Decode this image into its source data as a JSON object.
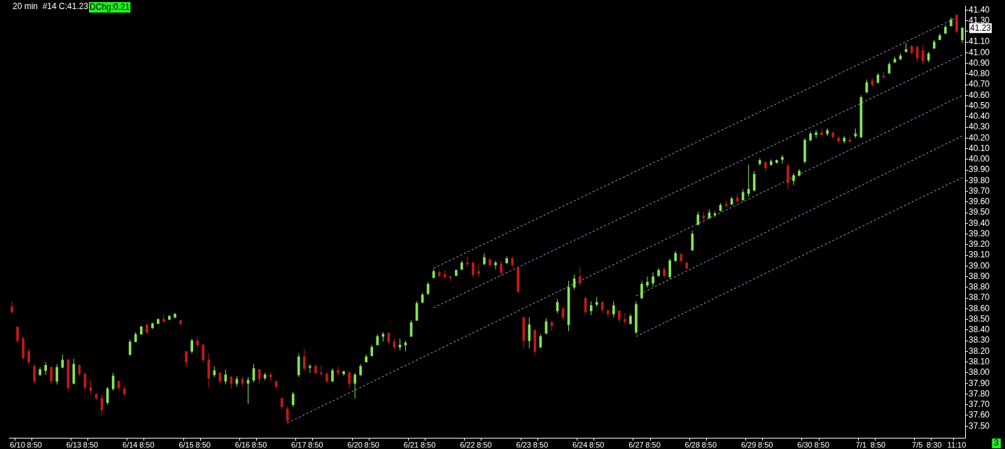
{
  "chart_data": {
    "type": "candlestick",
    "title": "20 min  #14 C:41.23",
    "annotations": [
      "DChg:0.21",
      "41.23",
      "3"
    ],
    "categories": [
      null,
      "6/10",
      null,
      null,
      "8:50",
      null,
      null,
      null,
      null,
      null,
      null,
      "6/13",
      null,
      null,
      "8:50",
      null,
      null,
      null,
      null,
      null,
      null,
      "6/14",
      null,
      null,
      "8:50",
      null,
      null,
      null,
      null,
      null,
      null,
      "6/15",
      null,
      null,
      "8:50",
      null,
      null,
      null,
      null,
      null,
      null,
      "6/16",
      null,
      null,
      "8:50",
      null,
      null,
      null,
      null,
      null,
      null,
      "6/17",
      null,
      null,
      "8:50",
      null,
      null,
      null,
      null,
      null,
      null,
      "6/20",
      null,
      null,
      "8:50",
      null,
      null,
      null,
      null,
      null,
      null,
      "6/21",
      null,
      null,
      "8:50",
      null,
      null,
      null,
      null,
      null,
      null,
      "6/22",
      null,
      null,
      "8:50",
      null,
      null,
      null,
      null,
      null,
      null,
      "6/23",
      null,
      null,
      "8:50",
      null,
      null,
      null,
      null,
      null,
      null,
      "6/24",
      null,
      null,
      "8:50",
      null,
      null,
      null,
      null,
      null,
      null,
      "6/27",
      null,
      null,
      "8:50",
      null,
      null,
      null,
      null,
      null,
      null,
      "6/28",
      null,
      null,
      "8:50",
      null,
      null,
      null,
      null,
      null,
      null,
      "6/29",
      null,
      null,
      "8:50",
      null,
      null,
      null,
      null,
      null,
      null,
      "6/30",
      null,
      null,
      "8:50",
      null,
      null,
      null,
      null,
      null,
      null,
      "7/1",
      null,
      null,
      "8:50",
      null,
      null,
      null,
      null,
      null,
      null,
      "7/5",
      null,
      null,
      "8:30",
      null,
      null,
      null,
      "11:10",
      null
    ],
    "series": [
      {
        "colors": [
          "#c41a1a",
          "#c41a1a",
          "#c41a1a",
          "#c41a1a",
          "#c41a1a",
          "#86e45c",
          "#86e45c",
          "#c41a1a",
          "#86e45c",
          "#86e45c",
          "#c41a1a",
          "#86e45c",
          "#c41a1a",
          "#c41a1a",
          "#c41a1a",
          "#c41a1a",
          "#c41a1a",
          "#86e45c",
          "#86e45c",
          "#c41a1a",
          "#c41a1a",
          "#86e45c",
          "#86e45c",
          "#86e45c",
          "#c41a1a",
          "#86e45c",
          "#86e45c",
          "#c41a1a",
          "#86e45c",
          "#86e45c",
          "#c41a1a",
          "#c41a1a",
          "#86e45c",
          "#c41a1a",
          "#c41a1a",
          "#c41a1a",
          "#86e45c",
          "#c41a1a",
          "#86e45c",
          "#c41a1a",
          "#86e45c",
          "#c41a1a",
          "#86e45c",
          "#86e45c",
          "#c41a1a",
          "#86e45c",
          "#c41a1a",
          "#c41a1a",
          "#c41a1a",
          "#c41a1a",
          "#86e45c",
          "#86e45c",
          "#c41a1a",
          "#86e45c",
          "#c41a1a",
          "#c41a1a",
          "#c41a1a",
          "#86e45c",
          "#c41a1a",
          "#86e45c",
          "#c41a1a",
          "#86e45c",
          "#86e45c",
          "#86e45c",
          "#86e45c",
          "#86e45c",
          "#86e45c",
          "#c41a1a",
          "#c41a1a",
          "#86e45c",
          "#86e45c",
          "#86e45c",
          "#86e45c",
          "#86e45c",
          "#86e45c",
          "#86e45c",
          "#c41a1a",
          "#c41a1a",
          "#c41a1a",
          "#86e45c",
          "#86e45c",
          "#c41a1a",
          "#c41a1a",
          "#c41a1a",
          "#86e45c",
          "#c41a1a",
          "#86e45c",
          "#c41a1a",
          "#86e45c",
          "#c41a1a",
          "#c41a1a",
          "#c41a1a",
          "#86e45c",
          "#c41a1a",
          "#86e45c",
          "#86e45c",
          "#c41a1a",
          "#86e45c",
          "#c41a1a",
          "#86e45c",
          "#86e45c",
          "#c41a1a",
          "#c41a1a",
          "#86e45c",
          "#86e45c",
          "#c41a1a",
          "#c41a1a",
          "#86e45c",
          "#c41a1a",
          "#c41a1a",
          "#86e45c",
          "#86e45c",
          "#86e45c",
          "#86e45c",
          "#86e45c",
          "#86e45c",
          "#c41a1a",
          "#86e45c",
          "#86e45c",
          "#c41a1a",
          "#c41a1a",
          "#86e45c",
          "#86e45c",
          "#c41a1a",
          "#86e45c",
          "#86e45c",
          "#86e45c",
          "#c41a1a",
          "#86e45c",
          "#c41a1a",
          "#86e45c",
          "#86e45c",
          "#86e45c",
          "#86e45c",
          "#c41a1a",
          "#86e45c",
          "#86e45c",
          "#86e45c",
          "#c41a1a",
          "#86e45c",
          "#86e45c",
          "#86e45c",
          "#86e45c",
          "#86e45c",
          "#c41a1a",
          "#86e45c",
          "#c41a1a",
          "#c41a1a",
          "#86e45c",
          "#c41a1a",
          "#86e45c",
          "#86e45c",
          "#86e45c",
          "#c41a1a",
          "#86e45c",
          "#c41a1a",
          "#86e45c",
          "#86e45c",
          "#86e45c",
          "#86e45c",
          "#c41a1a",
          "#c41a1a",
          "#c41a1a",
          "#86e45c",
          "#86e45c",
          "#86e45c",
          "#86e45c",
          "#86e45c",
          "#c41a1a",
          "#86e45c"
        ],
        "ohlc": [
          [
            38.62,
            38.67,
            38.55,
            38.57
          ],
          [
            38.43,
            38.43,
            38.28,
            38.3
          ],
          [
            38.32,
            38.34,
            38.12,
            38.14
          ],
          [
            38.2,
            38.23,
            38.08,
            38.1
          ],
          [
            38.06,
            38.08,
            37.89,
            37.92
          ],
          [
            37.98,
            38.05,
            37.97,
            38.03
          ],
          [
            38.02,
            38.1,
            37.98,
            38.07
          ],
          [
            38.05,
            38.06,
            37.89,
            37.92
          ],
          [
            37.92,
            38.08,
            37.89,
            38.05
          ],
          [
            38.05,
            38.17,
            38.04,
            38.12
          ],
          [
            38.12,
            38.13,
            37.83,
            37.86
          ],
          [
            37.9,
            38.13,
            37.89,
            38.08
          ],
          [
            38.07,
            38.08,
            37.97,
            37.99
          ],
          [
            37.99,
            38.0,
            37.83,
            37.86
          ],
          [
            37.86,
            37.93,
            37.8,
            37.83
          ],
          [
            37.8,
            37.8,
            37.74,
            37.76
          ],
          [
            37.76,
            37.8,
            37.6,
            37.65
          ],
          [
            37.72,
            37.87,
            37.7,
            37.85
          ],
          [
            37.85,
            38.0,
            37.83,
            37.97
          ],
          [
            37.92,
            37.93,
            37.83,
            37.86
          ],
          [
            37.85,
            37.88,
            37.78,
            37.8
          ],
          [
            38.17,
            38.31,
            38.16,
            38.29
          ],
          [
            38.29,
            38.38,
            38.29,
            38.36
          ],
          [
            38.36,
            38.44,
            38.36,
            38.43
          ],
          [
            38.45,
            38.46,
            38.36,
            38.38
          ],
          [
            38.42,
            38.47,
            38.41,
            38.46
          ],
          [
            38.46,
            38.51,
            38.46,
            38.5
          ],
          [
            38.5,
            38.55,
            38.47,
            38.48
          ],
          [
            38.5,
            38.54,
            38.49,
            38.53
          ],
          [
            38.52,
            38.56,
            38.51,
            38.55
          ],
          [
            38.49,
            38.49,
            38.45,
            38.46
          ],
          [
            38.2,
            38.2,
            38.05,
            38.1
          ],
          [
            38.2,
            38.32,
            38.18,
            38.3
          ],
          [
            38.3,
            38.33,
            38.23,
            38.26
          ],
          [
            38.26,
            38.27,
            38.1,
            38.12
          ],
          [
            38.12,
            38.18,
            37.86,
            37.95
          ],
          [
            37.98,
            38.06,
            37.96,
            38.02
          ],
          [
            38.0,
            38.0,
            37.89,
            37.92
          ],
          [
            37.92,
            38.03,
            37.89,
            37.98
          ],
          [
            37.96,
            37.97,
            37.85,
            37.9
          ],
          [
            37.9,
            37.97,
            37.87,
            37.94
          ],
          [
            37.94,
            37.96,
            37.87,
            37.9
          ],
          [
            37.9,
            37.96,
            37.71,
            37.93
          ],
          [
            37.93,
            38.08,
            37.91,
            38.04
          ],
          [
            38.03,
            38.03,
            37.9,
            37.94
          ],
          [
            37.95,
            38.0,
            37.93,
            37.98
          ],
          [
            37.98,
            38.0,
            37.92,
            37.96
          ],
          [
            37.92,
            37.92,
            37.85,
            37.87
          ],
          [
            37.76,
            37.76,
            37.66,
            37.68
          ],
          [
            37.66,
            37.69,
            37.52,
            37.55
          ],
          [
            37.7,
            37.82,
            37.68,
            37.8
          ],
          [
            37.98,
            38.18,
            37.96,
            38.15
          ],
          [
            38.15,
            38.22,
            38.02,
            38.04
          ],
          [
            38.05,
            38.08,
            38.0,
            38.06
          ],
          [
            38.06,
            38.08,
            37.99,
            38.0
          ],
          [
            38.0,
            38.07,
            37.97,
            37.99
          ],
          [
            37.99,
            38.0,
            37.9,
            37.92
          ],
          [
            37.92,
            38.04,
            37.91,
            38.02
          ],
          [
            38.02,
            38.06,
            37.97,
            38.0
          ],
          [
            37.99,
            38.02,
            37.97,
            38.01
          ],
          [
            38.0,
            38.02,
            37.85,
            37.9
          ],
          [
            37.9,
            38.0,
            37.76,
            37.98
          ],
          [
            37.98,
            38.08,
            37.97,
            38.06
          ],
          [
            38.1,
            38.17,
            38.1,
            38.15
          ],
          [
            38.16,
            38.26,
            38.15,
            38.24
          ],
          [
            38.26,
            38.36,
            38.26,
            38.34
          ],
          [
            38.34,
            38.38,
            38.29,
            38.36
          ],
          [
            38.37,
            38.38,
            38.27,
            38.29
          ],
          [
            38.29,
            38.32,
            38.22,
            38.24
          ],
          [
            38.24,
            38.32,
            38.21,
            38.26
          ],
          [
            38.26,
            38.3,
            38.2,
            38.28
          ],
          [
            38.34,
            38.49,
            38.34,
            38.47
          ],
          [
            38.49,
            38.67,
            38.49,
            38.65
          ],
          [
            38.66,
            38.75,
            38.65,
            38.73
          ],
          [
            38.74,
            38.85,
            38.73,
            38.83
          ],
          [
            38.89,
            38.97,
            38.89,
            38.95
          ],
          [
            38.94,
            38.96,
            38.89,
            38.91
          ],
          [
            38.92,
            38.96,
            38.88,
            38.9
          ],
          [
            38.9,
            38.91,
            38.86,
            38.89
          ],
          [
            38.91,
            38.97,
            38.91,
            38.96
          ],
          [
            38.97,
            39.05,
            38.96,
            39.03
          ],
          [
            39.03,
            39.09,
            38.99,
            39.02
          ],
          [
            39.03,
            39.04,
            38.89,
            38.92
          ],
          [
            38.95,
            39.02,
            38.89,
            38.93
          ],
          [
            39.02,
            39.12,
            39.01,
            39.08
          ],
          [
            39.06,
            39.07,
            38.99,
            39.01
          ],
          [
            39.01,
            39.05,
            38.97,
            39.03
          ],
          [
            39.02,
            39.05,
            38.91,
            38.94
          ],
          [
            39.03,
            39.09,
            39.02,
            39.07
          ],
          [
            39.07,
            39.09,
            38.99,
            39.01
          ],
          [
            38.98,
            38.98,
            38.74,
            38.76
          ],
          [
            38.52,
            38.52,
            38.23,
            38.3
          ],
          [
            38.3,
            38.52,
            38.23,
            38.45
          ],
          [
            38.4,
            38.4,
            38.16,
            38.2
          ],
          [
            38.24,
            38.36,
            38.23,
            38.34
          ],
          [
            38.37,
            38.51,
            38.36,
            38.48
          ],
          [
            38.47,
            38.49,
            38.39,
            38.44
          ],
          [
            38.58,
            38.69,
            38.56,
            38.66
          ],
          [
            38.6,
            38.62,
            38.49,
            38.52
          ],
          [
            38.45,
            38.86,
            38.39,
            38.8
          ],
          [
            38.8,
            38.92,
            38.78,
            38.88
          ],
          [
            38.9,
            38.99,
            38.81,
            38.84
          ],
          [
            38.7,
            38.71,
            38.54,
            38.57
          ],
          [
            38.58,
            38.67,
            38.54,
            38.63
          ],
          [
            38.64,
            38.71,
            38.62,
            38.66
          ],
          [
            38.66,
            38.67,
            38.56,
            38.59
          ],
          [
            38.58,
            38.6,
            38.52,
            38.55
          ],
          [
            38.55,
            38.67,
            38.52,
            38.63
          ],
          [
            38.58,
            38.58,
            38.47,
            38.5
          ],
          [
            38.5,
            38.56,
            38.45,
            38.48
          ],
          [
            38.46,
            38.55,
            38.45,
            38.53
          ],
          [
            38.38,
            38.67,
            38.36,
            38.64
          ],
          [
            38.7,
            38.86,
            38.69,
            38.83
          ],
          [
            38.82,
            38.9,
            38.8,
            38.85
          ],
          [
            38.84,
            38.94,
            38.81,
            38.9
          ],
          [
            38.91,
            38.98,
            38.9,
            38.96
          ],
          [
            38.97,
            38.99,
            38.89,
            38.91
          ],
          [
            38.9,
            39.07,
            38.88,
            39.05
          ],
          [
            39.05,
            39.14,
            39.04,
            39.12
          ],
          [
            39.11,
            39.12,
            39.03,
            39.05
          ],
          [
            39.03,
            39.04,
            38.97,
            38.98
          ],
          [
            39.15,
            39.33,
            39.14,
            39.3
          ],
          [
            39.39,
            39.51,
            39.38,
            39.48
          ],
          [
            39.47,
            39.51,
            39.4,
            39.45
          ],
          [
            39.45,
            39.53,
            39.44,
            39.5
          ],
          [
            39.48,
            39.51,
            39.46,
            39.49
          ],
          [
            39.52,
            39.59,
            39.51,
            39.57
          ],
          [
            39.58,
            39.61,
            39.55,
            39.57
          ],
          [
            39.58,
            39.65,
            39.57,
            39.63
          ],
          [
            39.64,
            39.68,
            39.59,
            39.61
          ],
          [
            39.62,
            39.72,
            39.61,
            39.69
          ],
          [
            39.68,
            39.95,
            39.65,
            39.72
          ],
          [
            39.71,
            39.89,
            39.7,
            39.86
          ],
          [
            39.96,
            40.01,
            39.94,
            39.99
          ],
          [
            39.97,
            39.98,
            39.89,
            39.92
          ],
          [
            39.95,
            40.0,
            39.94,
            39.98
          ],
          [
            39.97,
            40.0,
            39.96,
            39.99
          ],
          [
            40.0,
            40.04,
            39.96,
            40.02
          ],
          [
            39.94,
            39.96,
            39.72,
            39.78
          ],
          [
            39.8,
            39.87,
            39.76,
            39.85
          ],
          [
            39.85,
            39.91,
            39.84,
            39.89
          ],
          [
            39.98,
            40.2,
            39.96,
            40.18
          ],
          [
            40.18,
            40.26,
            40.17,
            40.24
          ],
          [
            40.23,
            40.27,
            40.2,
            40.25
          ],
          [
            40.25,
            40.29,
            40.22,
            40.23
          ],
          [
            40.24,
            40.29,
            40.22,
            40.27
          ],
          [
            40.25,
            40.26,
            40.2,
            40.21
          ],
          [
            40.2,
            40.22,
            40.15,
            40.17
          ],
          [
            40.17,
            40.22,
            40.15,
            40.2
          ],
          [
            40.18,
            40.21,
            40.15,
            40.17
          ],
          [
            40.22,
            40.29,
            40.2,
            40.24
          ],
          [
            40.21,
            40.6,
            40.2,
            40.58
          ],
          [
            40.63,
            40.75,
            40.62,
            40.72
          ],
          [
            40.74,
            40.76,
            40.68,
            40.7
          ],
          [
            40.72,
            40.81,
            40.71,
            40.79
          ],
          [
            40.78,
            40.82,
            40.76,
            40.77
          ],
          [
            40.81,
            40.91,
            40.8,
            40.89
          ],
          [
            40.91,
            40.96,
            40.91,
            40.94
          ],
          [
            40.94,
            40.99,
            40.93,
            40.97
          ],
          [
            41.01,
            41.09,
            41.0,
            41.03
          ],
          [
            41.06,
            41.07,
            40.99,
            41.0
          ],
          [
            41.05,
            41.07,
            40.91,
            40.95
          ],
          [
            41.02,
            41.07,
            40.89,
            40.92
          ],
          [
            40.93,
            41.01,
            40.91,
            40.99
          ],
          [
            41.04,
            41.12,
            41.04,
            41.1
          ],
          [
            41.12,
            41.18,
            41.12,
            41.16
          ],
          [
            41.18,
            41.26,
            41.18,
            41.24
          ],
          [
            41.25,
            41.33,
            41.25,
            41.31
          ],
          [
            41.35,
            41.36,
            41.18,
            41.2
          ],
          [
            41.12,
            41.24,
            41.09,
            41.23
          ]
        ]
      },
      {
        "type": "line",
        "color": "#a4a4d4",
        "line_style": "dashed",
        "values": [
          null,
          null,
          null,
          null,
          null,
          null,
          null,
          null,
          null,
          null,
          null,
          null,
          null,
          null,
          null,
          null,
          null,
          null,
          null,
          null,
          null,
          null,
          null,
          null,
          null,
          null,
          null,
          null,
          null,
          null,
          null,
          null,
          null,
          null,
          null,
          null,
          null,
          null,
          null,
          null,
          null,
          null,
          null,
          null,
          null,
          null,
          null,
          null,
          null,
          null,
          null,
          null,
          null,
          null,
          null,
          null,
          null,
          null,
          null,
          null,
          null,
          null,
          null,
          null,
          null,
          null,
          null,
          null,
          null,
          null,
          null,
          null,
          null,
          null,
          null,
          38.98,
          null,
          null,
          null,
          null,
          null,
          null,
          null,
          null,
          null,
          null,
          null,
          null,
          null,
          null,
          null,
          null,
          null,
          null,
          null,
          null,
          null,
          null,
          null,
          null,
          null,
          null,
          null,
          null,
          null,
          null,
          null,
          null,
          null,
          null,
          null,
          null,
          null,
          null,
          null,
          null,
          null,
          null,
          null,
          null,
          null,
          null,
          null,
          null,
          null,
          null,
          null,
          null,
          null,
          null,
          null,
          null,
          null,
          null,
          null,
          null,
          null,
          null,
          null,
          null,
          null,
          null,
          null,
          null,
          null,
          null,
          null,
          null,
          null,
          null,
          null,
          null,
          null,
          null,
          null,
          null,
          null,
          null,
          null,
          null,
          null,
          null,
          null,
          null,
          null,
          null,
          null,
          null,
          41.33,
          null
        ]
      },
      {
        "type": "line",
        "color": "#a4a4d4",
        "line_style": "dashed",
        "values": [
          null,
          null,
          null,
          null,
          null,
          null,
          null,
          null,
          null,
          null,
          null,
          null,
          null,
          null,
          null,
          null,
          null,
          null,
          null,
          null,
          null,
          null,
          null,
          null,
          null,
          null,
          null,
          null,
          null,
          null,
          null,
          null,
          null,
          null,
          null,
          null,
          null,
          null,
          null,
          null,
          null,
          null,
          null,
          null,
          null,
          null,
          null,
          null,
          null,
          null,
          null,
          null,
          null,
          null,
          null,
          null,
          null,
          null,
          null,
          null,
          null,
          null,
          null,
          null,
          null,
          null,
          null,
          null,
          null,
          null,
          null,
          null,
          null,
          null,
          null,
          38.61,
          null,
          null,
          null,
          null,
          null,
          null,
          null,
          null,
          null,
          null,
          null,
          null,
          null,
          null,
          null,
          null,
          null,
          null,
          null,
          null,
          null,
          null,
          null,
          null,
          null,
          null,
          null,
          null,
          null,
          null,
          null,
          null,
          null,
          null,
          null,
          null,
          null,
          null,
          null,
          null,
          null,
          null,
          null,
          null,
          null,
          null,
          null,
          null,
          null,
          null,
          null,
          null,
          null,
          null,
          null,
          null,
          null,
          null,
          null,
          null,
          null,
          null,
          null,
          null,
          null,
          null,
          null,
          null,
          null,
          null,
          null,
          null,
          null,
          null,
          null,
          null,
          null,
          null,
          null,
          null,
          null,
          null,
          null,
          null,
          null,
          null,
          null,
          null,
          null,
          null,
          null,
          null,
          null,
          40.98
        ]
      },
      {
        "type": "line",
        "color": "#a4a4d4",
        "line_style": "dashed",
        "values": [
          null,
          null,
          null,
          null,
          null,
          null,
          null,
          null,
          null,
          null,
          null,
          null,
          null,
          null,
          null,
          null,
          null,
          null,
          null,
          null,
          null,
          null,
          null,
          null,
          null,
          null,
          null,
          null,
          null,
          null,
          null,
          null,
          null,
          null,
          null,
          null,
          null,
          null,
          null,
          null,
          null,
          null,
          null,
          null,
          null,
          null,
          null,
          null,
          null,
          37.53,
          null,
          null,
          null,
          null,
          null,
          null,
          null,
          null,
          null,
          null,
          null,
          null,
          null,
          null,
          null,
          null,
          null,
          null,
          null,
          null,
          null,
          null,
          null,
          null,
          null,
          null,
          null,
          null,
          null,
          null,
          null,
          null,
          null,
          null,
          null,
          null,
          null,
          null,
          null,
          null,
          null,
          null,
          null,
          null,
          null,
          null,
          null,
          null,
          null,
          null,
          null,
          null,
          null,
          null,
          null,
          null,
          null,
          null,
          null,
          null,
          null,
          null,
          null,
          null,
          null,
          null,
          null,
          null,
          null,
          null,
          null,
          null,
          null,
          null,
          null,
          null,
          null,
          null,
          null,
          null,
          null,
          null,
          null,
          null,
          null,
          null,
          null,
          null,
          null,
          null,
          null,
          null,
          null,
          null,
          null,
          null,
          null,
          null,
          null,
          null,
          null,
          null,
          null,
          null,
          null,
          null,
          null,
          null,
          null,
          null,
          null,
          null,
          null,
          null,
          null,
          null,
          null,
          null,
          null,
          40.6
        ]
      },
      {
        "type": "line",
        "color": "#a4a4d4",
        "line_style": "dashed",
        "values": [
          null,
          null,
          null,
          null,
          null,
          null,
          null,
          null,
          null,
          null,
          null,
          null,
          null,
          null,
          null,
          null,
          null,
          null,
          null,
          null,
          null,
          null,
          null,
          null,
          null,
          null,
          null,
          null,
          null,
          null,
          null,
          null,
          null,
          null,
          null,
          null,
          null,
          null,
          null,
          null,
          null,
          null,
          null,
          null,
          null,
          null,
          null,
          null,
          null,
          null,
          null,
          null,
          null,
          null,
          null,
          null,
          null,
          null,
          null,
          null,
          null,
          null,
          null,
          null,
          null,
          null,
          null,
          null,
          null,
          null,
          null,
          null,
          null,
          null,
          null,
          null,
          null,
          null,
          null,
          null,
          null,
          null,
          null,
          null,
          null,
          null,
          null,
          null,
          null,
          null,
          null,
          null,
          null,
          null,
          null,
          null,
          null,
          null,
          null,
          null,
          null,
          null,
          null,
          null,
          null,
          null,
          null,
          null,
          null,
          null,
          null,
          38.72,
          null,
          null,
          null,
          null,
          null,
          null,
          null,
          null,
          null,
          null,
          null,
          null,
          null,
          null,
          null,
          null,
          null,
          null,
          null,
          null,
          null,
          null,
          null,
          null,
          null,
          null,
          null,
          null,
          null,
          null,
          null,
          null,
          null,
          null,
          null,
          null,
          null,
          null,
          null,
          null,
          null,
          null,
          null,
          null,
          null,
          null,
          null,
          null,
          null,
          null,
          null,
          null,
          null,
          null,
          null,
          null,
          null,
          40.22
        ]
      },
      {
        "type": "line",
        "color": "#a4a4d4",
        "line_style": "dashed",
        "values": [
          null,
          null,
          null,
          null,
          null,
          null,
          null,
          null,
          null,
          null,
          null,
          null,
          null,
          null,
          null,
          null,
          null,
          null,
          null,
          null,
          null,
          null,
          null,
          null,
          null,
          null,
          null,
          null,
          null,
          null,
          null,
          null,
          null,
          null,
          null,
          null,
          null,
          null,
          null,
          null,
          null,
          null,
          null,
          null,
          null,
          null,
          null,
          null,
          null,
          null,
          null,
          null,
          null,
          null,
          null,
          null,
          null,
          null,
          null,
          null,
          null,
          null,
          null,
          null,
          null,
          null,
          null,
          null,
          null,
          null,
          null,
          null,
          null,
          null,
          null,
          null,
          null,
          null,
          null,
          null,
          null,
          null,
          null,
          null,
          null,
          null,
          null,
          null,
          null,
          null,
          null,
          null,
          null,
          null,
          null,
          null,
          null,
          null,
          null,
          null,
          null,
          null,
          null,
          null,
          null,
          null,
          null,
          null,
          null,
          null,
          null,
          38.34,
          null,
          null,
          null,
          null,
          null,
          null,
          null,
          null,
          null,
          null,
          null,
          null,
          null,
          null,
          null,
          null,
          null,
          null,
          null,
          null,
          null,
          null,
          null,
          null,
          null,
          null,
          null,
          null,
          null,
          null,
          null,
          null,
          null,
          null,
          null,
          null,
          null,
          null,
          null,
          null,
          null,
          null,
          null,
          null,
          null,
          null,
          null,
          null,
          null,
          null,
          null,
          null,
          null,
          null,
          null,
          null,
          null,
          39.83
        ]
      }
    ],
    "ylim": [
      37.39,
      41.44
    ],
    "yticks": [
      {
        "value": 37.5,
        "label": "37.50"
      },
      {
        "value": 37.6,
        "label": "37.60"
      },
      {
        "value": 37.7,
        "label": "37.70"
      },
      {
        "value": 37.8,
        "label": "37.80"
      },
      {
        "value": 37.9,
        "label": "37.90"
      },
      {
        "value": 38.0,
        "label": "38.00"
      },
      {
        "value": 38.1,
        "label": "38.10"
      },
      {
        "value": 38.2,
        "label": "38.20"
      },
      {
        "value": 38.3,
        "label": "38.30"
      },
      {
        "value": 38.4,
        "label": "38.40"
      },
      {
        "value": 38.5,
        "label": "38.50"
      },
      {
        "value": 38.6,
        "label": "38.60"
      },
      {
        "value": 38.7,
        "label": "38.70"
      },
      {
        "value": 38.8,
        "label": "38.80"
      },
      {
        "value": 38.9,
        "label": "38.90"
      },
      {
        "value": 39.0,
        "label": "39.00"
      },
      {
        "value": 39.1,
        "label": "39.10"
      },
      {
        "value": 39.2,
        "label": "39.20"
      },
      {
        "value": 39.3,
        "label": "39.30"
      },
      {
        "value": 39.4,
        "label": "39.40"
      },
      {
        "value": 39.5,
        "label": "39.50"
      },
      {
        "value": 39.6,
        "label": "39.60"
      },
      {
        "value": 39.7,
        "label": "39.70"
      },
      {
        "value": 39.8,
        "label": "39.80"
      },
      {
        "value": 39.9,
        "label": "39.90"
      },
      {
        "value": 40.0,
        "label": "40.00"
      },
      {
        "value": 40.1,
        "label": "40.10"
      },
      {
        "value": 40.2,
        "label": "40.20"
      },
      {
        "value": 40.3,
        "label": "40.30"
      },
      {
        "value": 40.4,
        "label": "40.40"
      },
      {
        "value": 40.5,
        "label": "40.50"
      },
      {
        "value": 40.6,
        "label": "40.60"
      },
      {
        "value": 40.7,
        "label": "40.70"
      },
      {
        "value": 40.8,
        "label": "40.80"
      },
      {
        "value": 40.9,
        "label": "40.90"
      },
      {
        "value": 41.0,
        "label": "41.00"
      },
      {
        "value": 41.1,
        "label": "41.10"
      },
      {
        "value": 41.2,
        "label": null
      },
      {
        "value": 41.3,
        "label": "41.30"
      },
      {
        "value": 41.4,
        "label": "41.40"
      }
    ],
    "grid": false,
    "legend": false,
    "marker": "none"
  }
}
